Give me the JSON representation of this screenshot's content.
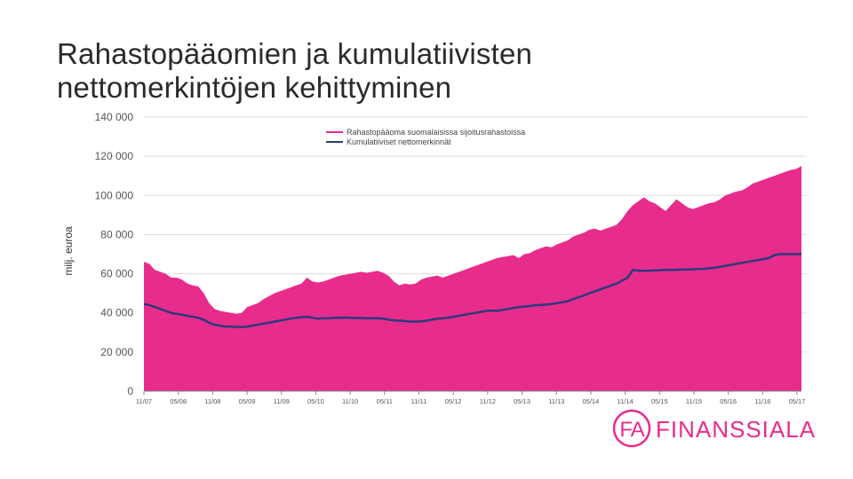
{
  "title_lines": [
    "Rahastopääomien ja kumulatiivisten",
    "nettomerkintöjen kehittyminen"
  ],
  "colors": {
    "area": "#e82c8c",
    "line": "#2b3a7c",
    "grid": "#dddddd",
    "brand": "#e82c8c"
  },
  "brand": {
    "name": "FINANSSIALA",
    "mark": "FA"
  },
  "chart_data": {
    "type": "area",
    "ylabel": "milj. euroa",
    "ylim": [
      0,
      140000
    ],
    "yticks": [
      0,
      20000,
      40000,
      60000,
      80000,
      100000,
      120000,
      140000
    ],
    "ytick_labels": [
      "0",
      "20 000",
      "40 000",
      "60 000",
      "80 000",
      "100 000",
      "120 000",
      "140 000"
    ],
    "xtick_labels": [
      "11/07",
      "05/08",
      "11/08",
      "05/09",
      "11/09",
      "05/10",
      "11/10",
      "05/11",
      "11/11",
      "05/12",
      "11/12",
      "05/13",
      "11/13",
      "05/14",
      "11/14",
      "05/15",
      "11/15",
      "05/16",
      "11/16",
      "05/17"
    ],
    "legend": [
      "Rahastopääoma suomalaisissa sijoitusrahastoissa",
      "Kumulatiiviset nettomerkinnät"
    ],
    "series": [
      {
        "name": "Rahastopääoma suomalaisissa sijoitusrahastoissa",
        "type": "area",
        "values": [
          66000,
          65000,
          62000,
          61000,
          60000,
          58000,
          58000,
          57000,
          55000,
          54000,
          53500,
          50000,
          45000,
          42000,
          41000,
          40500,
          40000,
          39500,
          40000,
          43000,
          44000,
          45000,
          47000,
          48500,
          50000,
          51000,
          52000,
          53000,
          54000,
          55000,
          58000,
          56000,
          55500,
          56000,
          57000,
          58000,
          59000,
          59500,
          60000,
          60500,
          61000,
          60500,
          61000,
          61500,
          60500,
          59000,
          56000,
          54000,
          55000,
          54500,
          55000,
          57000,
          58000,
          58500,
          59000,
          58000,
          59000,
          60000,
          61000,
          62000,
          63000,
          64000,
          65000,
          66000,
          67000,
          68000,
          68500,
          69000,
          69500,
          68000,
          70000,
          70500,
          72000,
          73000,
          74000,
          73500,
          75000,
          76000,
          77000,
          79000,
          80000,
          81000,
          82500,
          83000,
          82000,
          83000,
          84000,
          85000,
          88000,
          92000,
          95000,
          97000,
          99000,
          97000,
          96000,
          94000,
          92000,
          95000,
          98000,
          96000,
          94000,
          93000,
          94000,
          95000,
          96000,
          96500,
          98000,
          100000,
          101000,
          102000,
          102500,
          104000,
          106000,
          107000,
          108000,
          109000,
          110000,
          111000,
          112000,
          113000,
          113500,
          115000
        ]
      },
      {
        "name": "Kumulatiiviset nettomerkinnät",
        "type": "line",
        "values": [
          44500,
          44000,
          43000,
          42000,
          41000,
          40000,
          39500,
          39000,
          38500,
          38000,
          37500,
          36500,
          35000,
          34000,
          33500,
          33000,
          33000,
          32800,
          32800,
          33000,
          33500,
          34000,
          34500,
          35000,
          35500,
          36000,
          36500,
          37000,
          37500,
          37800,
          38000,
          37500,
          37000,
          37200,
          37300,
          37500,
          37500,
          37600,
          37500,
          37400,
          37400,
          37300,
          37300,
          37200,
          37000,
          36500,
          36200,
          36000,
          35800,
          35500,
          35500,
          35700,
          36000,
          36500,
          37000,
          37200,
          37500,
          38000,
          38500,
          39000,
          39500,
          40000,
          40500,
          41000,
          41200,
          41000,
          41500,
          42000,
          42500,
          43000,
          43200,
          43500,
          43800,
          44000,
          44200,
          44500,
          45000,
          45500,
          46000,
          47000,
          48000,
          49000,
          50000,
          51000,
          52000,
          53000,
          54000,
          55000,
          56500,
          58000,
          62000,
          61500,
          61500,
          61500,
          61700,
          61800,
          62000,
          62000,
          62000,
          62100,
          62200,
          62300,
          62400,
          62500,
          62800,
          63000,
          63500,
          64000,
          64500,
          65000,
          65500,
          66000,
          66500,
          67000,
          67500,
          68000,
          69500,
          70000,
          70000,
          70000,
          70000,
          70000
        ]
      }
    ]
  }
}
